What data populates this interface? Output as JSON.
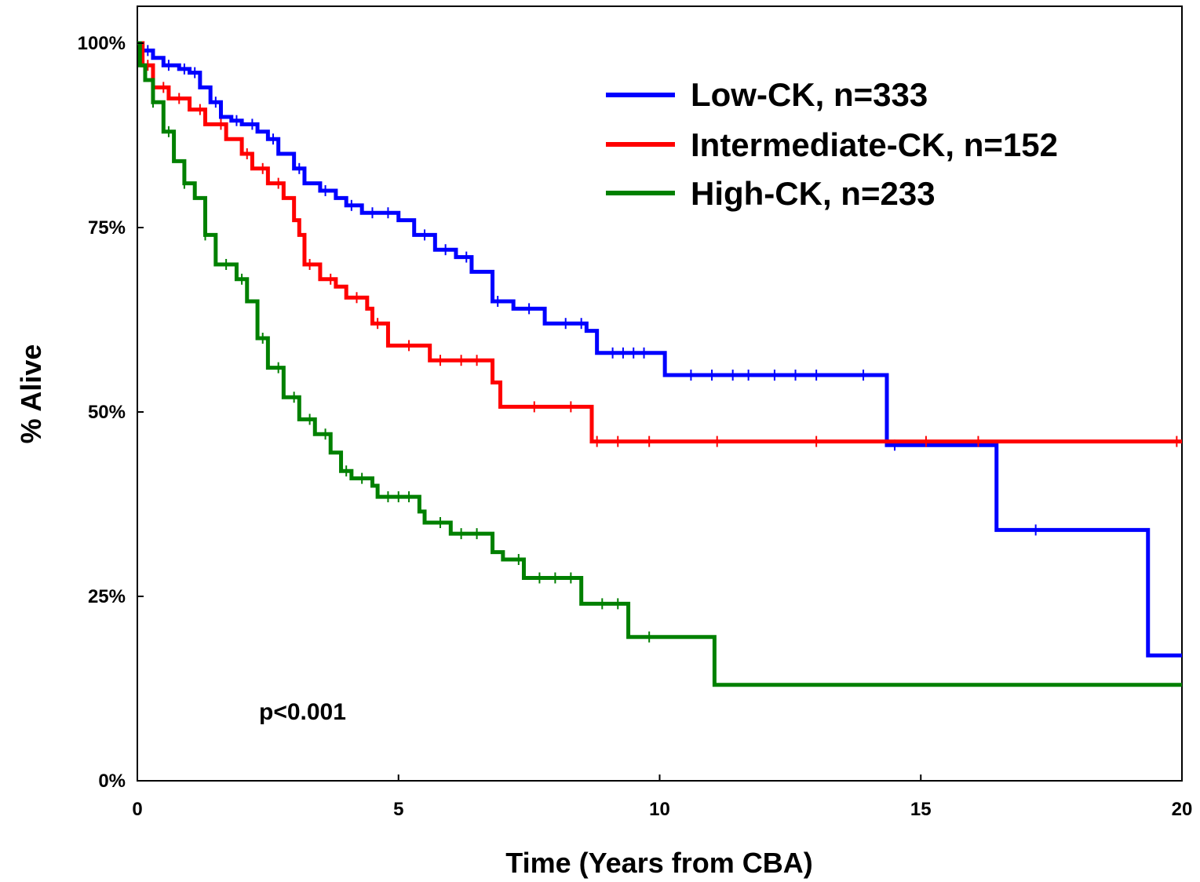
{
  "chart_data": {
    "type": "line",
    "subtype": "kaplan-meier step",
    "xlabel": "Time (Years from CBA)",
    "ylabel": "% Alive",
    "xlim": [
      0,
      20
    ],
    "ylim": [
      0,
      100
    ],
    "x_ticks": [
      "0",
      "5",
      "10",
      "15",
      "20"
    ],
    "y_ticks": [
      "0%",
      "25%",
      "50%",
      "75%",
      "100%"
    ],
    "grid": false,
    "legend_position": "top-right",
    "annotation": "p<0.001",
    "series": [
      {
        "name": "Low-CK, n=333",
        "color": "#0000ff",
        "points": [
          [
            0,
            100
          ],
          [
            0.1,
            99
          ],
          [
            0.3,
            98
          ],
          [
            0.5,
            97
          ],
          [
            0.8,
            96.5
          ],
          [
            1.0,
            96
          ],
          [
            1.2,
            94
          ],
          [
            1.4,
            92
          ],
          [
            1.6,
            90
          ],
          [
            1.8,
            89.5
          ],
          [
            2.0,
            89
          ],
          [
            2.3,
            88
          ],
          [
            2.5,
            87
          ],
          [
            2.7,
            85
          ],
          [
            3.0,
            83
          ],
          [
            3.2,
            81
          ],
          [
            3.5,
            80
          ],
          [
            3.8,
            79
          ],
          [
            4.0,
            78
          ],
          [
            4.3,
            77
          ],
          [
            4.7,
            77
          ],
          [
            5.0,
            76
          ],
          [
            5.3,
            74
          ],
          [
            5.7,
            72
          ],
          [
            6.1,
            71
          ],
          [
            6.4,
            69
          ],
          [
            6.8,
            65
          ],
          [
            7.2,
            64
          ],
          [
            7.8,
            62
          ],
          [
            8.6,
            61
          ],
          [
            8.8,
            58
          ],
          [
            10.1,
            55
          ],
          [
            14.35,
            45.5
          ],
          [
            16.45,
            34
          ],
          [
            19.35,
            17
          ],
          [
            20,
            17
          ]
        ],
        "censor": [
          0.2,
          0.6,
          0.9,
          1.1,
          1.5,
          1.9,
          2.2,
          2.6,
          3.1,
          3.6,
          4.1,
          4.5,
          4.8,
          5.5,
          5.9,
          6.3,
          6.9,
          7.5,
          8.2,
          8.5,
          9.1,
          9.3,
          9.5,
          9.7,
          10.6,
          11.0,
          11.4,
          11.7,
          12.2,
          12.6,
          13.0,
          13.9,
          14.5,
          17.2
        ]
      },
      {
        "name": "Intermediate-CK, n=152",
        "color": "#ff0000",
        "points": [
          [
            0,
            100
          ],
          [
            0.1,
            97
          ],
          [
            0.3,
            94
          ],
          [
            0.6,
            92.5
          ],
          [
            1.0,
            91
          ],
          [
            1.3,
            89
          ],
          [
            1.7,
            87
          ],
          [
            2.0,
            85
          ],
          [
            2.2,
            83
          ],
          [
            2.5,
            81
          ],
          [
            2.8,
            79
          ],
          [
            3.0,
            76
          ],
          [
            3.1,
            74
          ],
          [
            3.2,
            70
          ],
          [
            3.5,
            68
          ],
          [
            3.8,
            67
          ],
          [
            4.0,
            65.5
          ],
          [
            4.4,
            64
          ],
          [
            4.5,
            62
          ],
          [
            4.8,
            59
          ],
          [
            5.6,
            57
          ],
          [
            6.8,
            54
          ],
          [
            6.95,
            50.7
          ],
          [
            8.7,
            46
          ],
          [
            20,
            46
          ]
        ],
        "censor": [
          0.2,
          0.5,
          0.8,
          1.2,
          1.6,
          2.1,
          2.4,
          2.7,
          3.3,
          3.7,
          4.2,
          4.6,
          5.2,
          5.8,
          6.2,
          6.5,
          7.6,
          8.3,
          8.8,
          9.2,
          9.8,
          11.1,
          13.0,
          15.1,
          16.1,
          19.9
        ]
      },
      {
        "name": "High-CK, n=233",
        "color": "#008000",
        "points": [
          [
            0,
            100
          ],
          [
            0.05,
            97
          ],
          [
            0.15,
            95
          ],
          [
            0.3,
            92
          ],
          [
            0.5,
            88
          ],
          [
            0.7,
            84
          ],
          [
            0.9,
            81
          ],
          [
            1.1,
            79
          ],
          [
            1.3,
            74
          ],
          [
            1.5,
            70
          ],
          [
            1.9,
            68
          ],
          [
            2.1,
            65
          ],
          [
            2.3,
            60
          ],
          [
            2.5,
            56
          ],
          [
            2.8,
            52
          ],
          [
            3.1,
            49
          ],
          [
            3.4,
            47
          ],
          [
            3.7,
            44.5
          ],
          [
            3.9,
            42
          ],
          [
            4.1,
            41
          ],
          [
            4.5,
            40
          ],
          [
            4.6,
            38.5
          ],
          [
            5.4,
            36.5
          ],
          [
            5.5,
            35
          ],
          [
            6.0,
            33.5
          ],
          [
            6.8,
            31
          ],
          [
            7.0,
            30
          ],
          [
            7.4,
            27.5
          ],
          [
            8.5,
            24
          ],
          [
            9.4,
            19.5
          ],
          [
            11.05,
            13
          ],
          [
            20,
            13
          ]
        ],
        "censor": [
          0.3,
          0.6,
          0.9,
          1.3,
          1.7,
          2.0,
          2.4,
          2.7,
          3.0,
          3.3,
          3.6,
          4.0,
          4.3,
          4.8,
          5.0,
          5.2,
          5.8,
          6.2,
          6.5,
          7.3,
          7.7,
          8.0,
          8.3,
          8.9,
          9.2,
          9.8
        ]
      }
    ]
  }
}
